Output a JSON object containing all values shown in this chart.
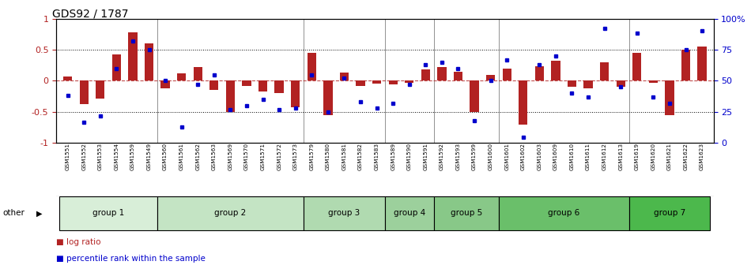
{
  "title": "GDS92 / 1787",
  "samples": [
    "GSM1551",
    "GSM1552",
    "GSM1553",
    "GSM1554",
    "GSM1559",
    "GSM1549",
    "GSM1560",
    "GSM1561",
    "GSM1562",
    "GSM1563",
    "GSM1569",
    "GSM1570",
    "GSM1571",
    "GSM1572",
    "GSM1573",
    "GSM1579",
    "GSM1580",
    "GSM1581",
    "GSM1582",
    "GSM1583",
    "GSM1589",
    "GSM1590",
    "GSM1591",
    "GSM1592",
    "GSM1593",
    "GSM1599",
    "GSM1600",
    "GSM1601",
    "GSM1602",
    "GSM1603",
    "GSM1609",
    "GSM1610",
    "GSM1611",
    "GSM1612",
    "GSM1613",
    "GSM1619",
    "GSM1620",
    "GSM1621",
    "GSM1622",
    "GSM1623"
  ],
  "log_ratio": [
    0.07,
    -0.38,
    -0.28,
    0.43,
    0.78,
    0.6,
    -0.12,
    0.12,
    0.22,
    -0.15,
    -0.5,
    -0.08,
    -0.17,
    -0.2,
    -0.43,
    0.45,
    -0.55,
    0.13,
    -0.08,
    -0.05,
    -0.06,
    -0.03,
    0.18,
    0.22,
    0.14,
    -0.5,
    0.1,
    0.19,
    -0.7,
    0.23,
    0.32,
    -0.1,
    -0.12,
    0.3,
    -0.1,
    0.45,
    -0.03,
    -0.55,
    0.5,
    0.55
  ],
  "percentile": [
    38,
    17,
    22,
    60,
    82,
    75,
    50,
    13,
    47,
    55,
    27,
    30,
    35,
    27,
    28,
    55,
    25,
    52,
    33,
    28,
    32,
    47,
    63,
    65,
    60,
    18,
    50,
    67,
    5,
    63,
    70,
    40,
    37,
    92,
    45,
    88,
    37,
    32,
    75,
    90
  ],
  "groups": [
    {
      "label": "group 1",
      "start": 0,
      "end": 5,
      "color": "#d8eed8"
    },
    {
      "label": "group 2",
      "start": 6,
      "end": 14,
      "color": "#c4e4c4"
    },
    {
      "label": "group 3",
      "start": 15,
      "end": 19,
      "color": "#b0dab0"
    },
    {
      "label": "group 4",
      "start": 20,
      "end": 22,
      "color": "#9cd09c"
    },
    {
      "label": "group 5",
      "start": 23,
      "end": 26,
      "color": "#88c888"
    },
    {
      "label": "group 6",
      "start": 27,
      "end": 34,
      "color": "#6abf6a"
    },
    {
      "label": "group 7",
      "start": 35,
      "end": 39,
      "color": "#4cb84c"
    }
  ],
  "bar_color": "#b22222",
  "dot_color": "#0000cc",
  "ylim": [
    -1,
    1
  ],
  "y2lim": [
    0,
    100
  ],
  "yticks_left": [
    -1,
    -0.5,
    0,
    0.5,
    1
  ],
  "yticks_right": [
    0,
    25,
    50,
    75,
    100
  ],
  "right_tick_labels": [
    "0",
    "25",
    "50",
    "75",
    "100%"
  ],
  "dotted_hlines": [
    0.5,
    -0.5
  ],
  "legend_bar_label": "log ratio",
  "legend_dot_label": "percentile rank within the sample",
  "other_label": "other"
}
